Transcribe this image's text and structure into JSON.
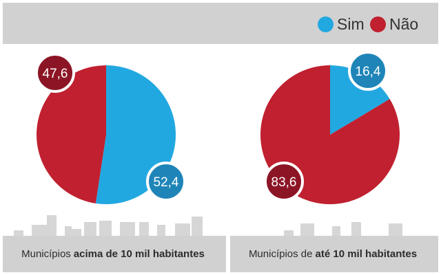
{
  "legend": [
    {
      "label": "Sim",
      "color": "#22a8e0"
    },
    {
      "label": "Não",
      "color": "#c0202f"
    }
  ],
  "chart_data": [
    {
      "type": "pie",
      "caption_pre": "Municípios",
      "caption_bold": "acima de 10 mil habitantes",
      "caption_post": "",
      "slices": [
        {
          "name": "Sim",
          "value": 52.4,
          "label": "52,4",
          "color": "#22a8e0",
          "badge_color": "#1f85b8"
        },
        {
          "name": "Não",
          "value": 47.6,
          "label": "47,6",
          "color": "#c0202f",
          "badge_color": "#8c1525"
        }
      ]
    },
    {
      "type": "pie",
      "caption_pre": "Municípios de",
      "caption_bold": "até 10 mil habitantes",
      "caption_post": "",
      "slices": [
        {
          "name": "Sim",
          "value": 16.4,
          "label": "16,4",
          "color": "#22a8e0",
          "badge_color": "#1f85b8"
        },
        {
          "name": "Não",
          "value": 83.6,
          "label": "83,6",
          "color": "#c0202f",
          "badge_color": "#8c1525"
        }
      ]
    }
  ]
}
